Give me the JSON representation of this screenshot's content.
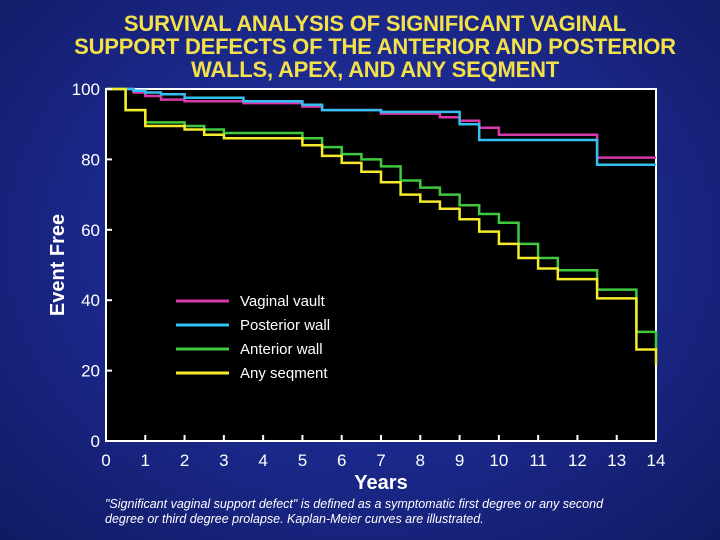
{
  "title_lines": [
    "SURVIVAL ANALYSIS OF SIGNIFICANT VAGINAL",
    "SUPPORT DEFECTS OF THE ANTERIOR AND POSTERIOR",
    "WALLS, APEX, AND ANY SEQMENT"
  ],
  "footnote_lines": [
    "\"Significant vaginal support defect\" is defined as a symptomatic first degree or any second",
    "degree or third degree prolapse.  Kaplan-Meier curves are illustrated."
  ],
  "chart_data": {
    "type": "line",
    "step": true,
    "xlabel": "Years",
    "ylabel": "Event Free",
    "xlim": [
      0,
      14
    ],
    "ylim": [
      0,
      100
    ],
    "x_ticks": [
      0,
      1,
      2,
      3,
      4,
      5,
      6,
      7,
      8,
      9,
      10,
      11,
      12,
      13,
      14
    ],
    "y_ticks": [
      0,
      20,
      40,
      60,
      80,
      100
    ],
    "grid": false,
    "legend_position": "center-left",
    "series": [
      {
        "name": "Vaginal vault",
        "color": "#d63aa8",
        "x": [
          0,
          0.7,
          1.0,
          1.4,
          2.0,
          3.5,
          5.0,
          5.5,
          7.0,
          8.5,
          9.0,
          9.5,
          10.0,
          12.5,
          14.0
        ],
        "y": [
          100,
          99,
          98,
          97,
          96.5,
          96,
          95,
          94,
          93,
          92,
          91,
          89,
          87,
          80.5,
          80.5
        ]
      },
      {
        "name": "Posterior wall",
        "color": "#33bff0",
        "x": [
          0,
          0.7,
          1.0,
          1.4,
          2.0,
          3.5,
          5.0,
          5.5,
          7.0,
          8.5,
          9.0,
          9.5,
          10.0,
          12.5,
          14.0
        ],
        "y": [
          100,
          99.5,
          99,
          98.5,
          97.5,
          96.5,
          95.5,
          94,
          93.5,
          93.5,
          90,
          85.5,
          85.5,
          78.5,
          78.5
        ]
      },
      {
        "name": "Anterior wall",
        "color": "#3fc93f",
        "x": [
          0,
          0.5,
          1.0,
          2.0,
          2.5,
          3.0,
          5.0,
          5.5,
          6.0,
          6.5,
          7.0,
          7.5,
          8.0,
          8.5,
          9.0,
          9.5,
          10.0,
          10.5,
          11.0,
          11.5,
          12.5,
          13.5,
          14.0
        ],
        "y": [
          100,
          94,
          90.5,
          89.5,
          88.5,
          87.5,
          86,
          83.5,
          81.5,
          80,
          78,
          74,
          72,
          70,
          67,
          64.5,
          62,
          56,
          52,
          48.5,
          43,
          31,
          25.5
        ]
      },
      {
        "name": "Any seqment",
        "color": "#f5ea2c",
        "x": [
          0,
          0.5,
          1.0,
          2.0,
          2.5,
          3.0,
          4.0,
          5.0,
          5.5,
          6.0,
          6.5,
          7.0,
          7.5,
          8.0,
          8.5,
          9.0,
          9.5,
          10.0,
          10.5,
          11.0,
          11.5,
          12.5,
          13.5,
          14.0
        ],
        "y": [
          100,
          94,
          89.5,
          88.5,
          87,
          86,
          86,
          84,
          81,
          79,
          76.5,
          73.5,
          70,
          68,
          66,
          63,
          59.5,
          56,
          52,
          49,
          46,
          40.5,
          26,
          21.5
        ]
      }
    ]
  }
}
